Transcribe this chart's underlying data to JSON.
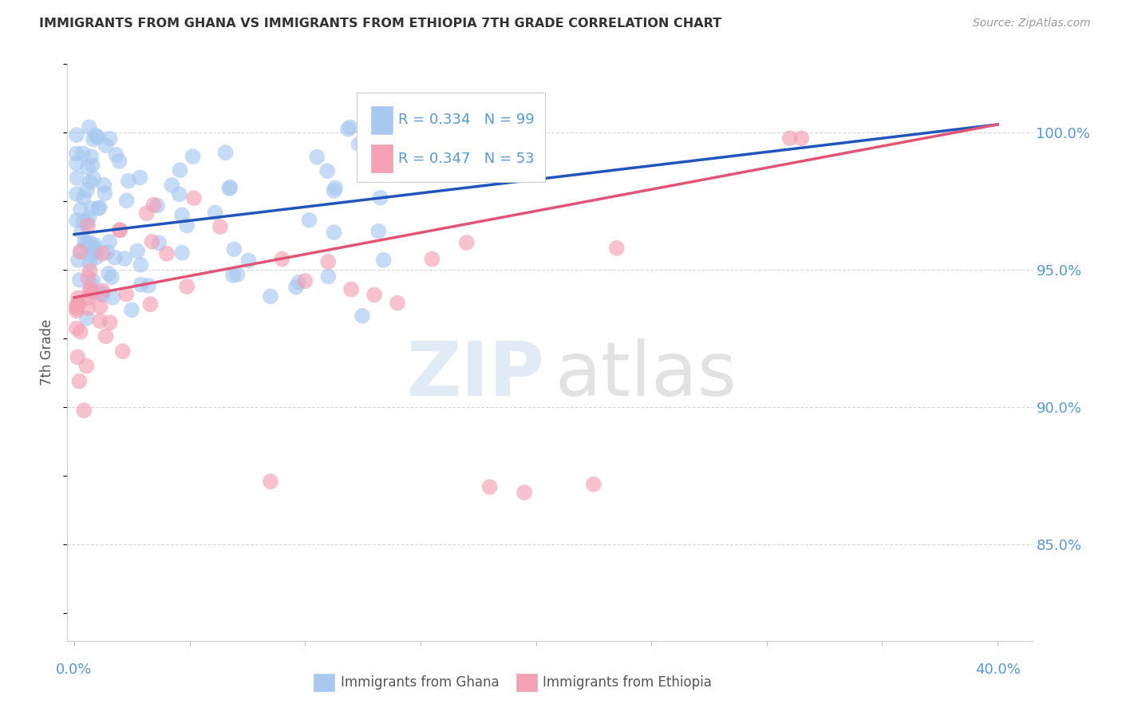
{
  "title": "IMMIGRANTS FROM GHANA VS IMMIGRANTS FROM ETHIOPIA 7TH GRADE CORRELATION CHART",
  "source": "Source: ZipAtlas.com",
  "ylabel": "7th Grade",
  "yticks": [
    "100.0%",
    "95.0%",
    "90.0%",
    "85.0%"
  ],
  "ytick_vals": [
    1.0,
    0.95,
    0.9,
    0.85
  ],
  "y_min": 0.815,
  "y_max": 1.025,
  "x_min": -0.003,
  "x_max": 0.415,
  "ghana_R": "0.334",
  "ghana_N": "99",
  "ethiopia_R": "0.347",
  "ethiopia_N": "53",
  "ghana_color": "#A8C8F0",
  "ethiopia_color": "#F4A0B5",
  "ghana_line_color": "#2255BB",
  "ethiopia_line_color": "#E05575",
  "background_color": "#FFFFFF",
  "grid_color": "#CCCCCC",
  "title_color": "#333333",
  "axis_label_color": "#5599DD",
  "ghana_line_x0": 0.0,
  "ghana_line_y0": 0.963,
  "ghana_line_x1": 0.4,
  "ghana_line_y1": 1.003,
  "eth_line_x0": 0.0,
  "eth_line_y0": 0.94,
  "eth_line_x1": 0.4,
  "eth_line_y1": 1.003
}
